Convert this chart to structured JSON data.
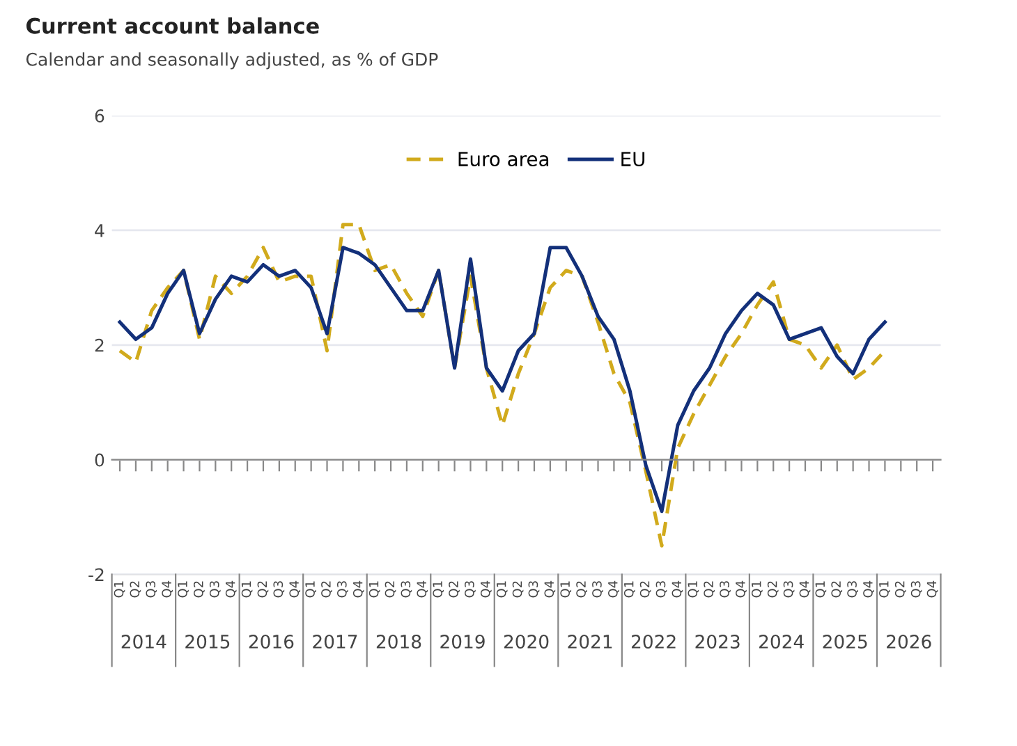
{
  "chart_data": {
    "type": "line",
    "title": "Current account balance",
    "subtitle": "Calendar and seasonally adjusted, as % of GDP",
    "categories": [
      "Q1",
      "Q2",
      "Q3",
      "Q4",
      "Q1",
      "Q2",
      "Q3",
      "Q4",
      "Q1",
      "Q2",
      "Q3",
      "Q4",
      "Q1",
      "Q2",
      "Q3",
      "Q4",
      "Q1",
      "Q2",
      "Q3",
      "Q4",
      "Q1",
      "Q2",
      "Q3",
      "Q4",
      "Q1",
      "Q2",
      "Q3",
      "Q4",
      "Q1",
      "Q2",
      "Q3",
      "Q4",
      "Q1",
      "Q2",
      "Q3",
      "Q4",
      "Q1",
      "Q2",
      "Q3",
      "Q4",
      "Q1",
      "Q2",
      "Q3",
      "Q4",
      "Q1",
      "Q2",
      "Q3",
      "Q4",
      "Q1",
      "Q2",
      "Q3",
      "Q4"
    ],
    "series": [
      {
        "name": "Euro area",
        "color": "#d1aa1c",
        "line_style": "dashed",
        "values": [
          1.9,
          1.7,
          2.6,
          3.0,
          3.3,
          2.1,
          3.2,
          2.9,
          3.2,
          3.7,
          3.1,
          3.2,
          3.2,
          1.9,
          4.1,
          4.1,
          3.3,
          3.4,
          2.9,
          2.5,
          3.3,
          1.6,
          3.2,
          1.6,
          0.6,
          1.5,
          2.2,
          3.0,
          3.3,
          3.2,
          2.4,
          1.5,
          1.0,
          -0.2,
          -1.5,
          0.2,
          0.8,
          1.3,
          1.8,
          2.2,
          2.7,
          3.1,
          2.1,
          2.0,
          1.6,
          2.0,
          1.4,
          1.6,
          1.9,
          null,
          null,
          null
        ]
      },
      {
        "name": "EU",
        "color": "#13307a",
        "line_style": "solid",
        "values": [
          2.4,
          2.1,
          2.3,
          2.9,
          3.3,
          2.2,
          2.8,
          3.2,
          3.1,
          3.4,
          3.2,
          3.3,
          3.0,
          2.2,
          3.7,
          3.6,
          3.4,
          3.0,
          2.6,
          2.6,
          3.3,
          1.6,
          3.5,
          1.6,
          1.2,
          1.9,
          2.2,
          3.7,
          3.7,
          3.2,
          2.5,
          2.1,
          1.2,
          -0.1,
          -0.9,
          0.6,
          1.2,
          1.6,
          2.2,
          2.6,
          2.9,
          2.7,
          2.1,
          2.2,
          2.3,
          1.8,
          1.5,
          2.1,
          2.4,
          null,
          null,
          null
        ]
      }
    ],
    "annotations": [
      "2014",
      "2015",
      "2016",
      "2017",
      "2018",
      "2019",
      "2020",
      "2021",
      "2022",
      "2023",
      "2024",
      "2025",
      "2026"
    ],
    "ylim": [
      -2,
      6
    ],
    "yticks": [
      -2,
      0,
      2,
      4,
      6
    ],
    "grid": "y",
    "legend": "top"
  }
}
